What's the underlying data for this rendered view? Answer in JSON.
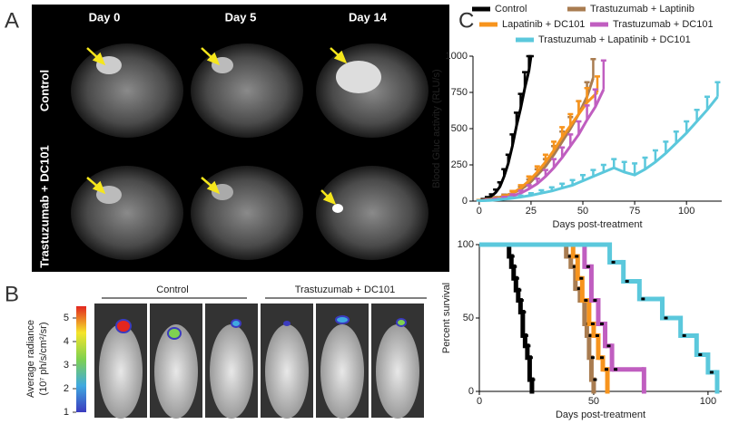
{
  "panels": {
    "a": {
      "label": "A",
      "columns": [
        "Day 0",
        "Day 5",
        "Day 14"
      ],
      "rows": [
        "Control",
        "Trastuzumab + DC101"
      ]
    },
    "b": {
      "label": "B",
      "groups": [
        "Control",
        "Trastuzumab + DC101"
      ],
      "colorbar": {
        "title": "Average radiance",
        "unit": "(10⁷ ph/s/cm²/sr)",
        "lim": [
          1,
          5.5
        ],
        "ticks": [
          1,
          2,
          3,
          4,
          5
        ]
      }
    },
    "c": {
      "label": "C"
    }
  },
  "chart_data": [
    {
      "type": "line",
      "ylabel": "Blood Gluc activity (RLU/s)",
      "xlabel": "Days post-treatment",
      "xlim": [
        -3,
        117
      ],
      "xticks": [
        0,
        25,
        50,
        75,
        100
      ],
      "ylim": [
        0,
        1000
      ],
      "yticks": [
        0,
        250,
        500,
        750,
        1000
      ],
      "series": [
        {
          "name": "Control",
          "color": "#000000",
          "x": [
            0,
            2,
            4,
            6,
            8,
            10,
            12,
            14,
            16,
            18,
            20,
            22,
            24,
            25
          ],
          "values": [
            5,
            10,
            20,
            35,
            60,
            100,
            170,
            260,
            380,
            520,
            640,
            780,
            900,
            1000
          ],
          "errors": [
            3,
            5,
            8,
            12,
            20,
            30,
            50,
            60,
            80,
            90,
            100,
            110,
            100,
            0
          ]
        },
        {
          "name": "Trastuzumab + Laptinib",
          "color": "#a97c50",
          "x": [
            0,
            4,
            8,
            12,
            16,
            20,
            24,
            28,
            32,
            36,
            40,
            44,
            48,
            52,
            55
          ],
          "values": [
            5,
            10,
            20,
            35,
            55,
            80,
            120,
            180,
            240,
            320,
            410,
            500,
            600,
            720,
            850
          ],
          "errors": [
            3,
            5,
            8,
            10,
            15,
            20,
            30,
            40,
            50,
            60,
            70,
            80,
            90,
            100,
            130
          ]
        },
        {
          "name": "Lapatinib + DC101",
          "color": "#f7941d",
          "x": [
            0,
            4,
            8,
            12,
            16,
            20,
            24,
            28,
            32,
            36,
            40,
            44,
            48,
            52,
            57
          ],
          "values": [
            5,
            8,
            15,
            30,
            55,
            90,
            140,
            200,
            270,
            350,
            440,
            520,
            600,
            680,
            750
          ],
          "errors": [
            3,
            4,
            7,
            10,
            15,
            20,
            30,
            40,
            50,
            60,
            70,
            80,
            90,
            100,
            110
          ]
        },
        {
          "name": "Trastuzumab + DC101",
          "color": "#c05ec0",
          "x": [
            0,
            4,
            8,
            12,
            16,
            20,
            24,
            28,
            32,
            36,
            40,
            44,
            48,
            52,
            56,
            60
          ],
          "values": [
            3,
            6,
            12,
            22,
            35,
            55,
            85,
            120,
            170,
            230,
            300,
            380,
            460,
            560,
            650,
            770
          ],
          "errors": [
            2,
            4,
            6,
            8,
            12,
            18,
            25,
            35,
            45,
            60,
            70,
            80,
            90,
            100,
            120,
            200
          ]
        },
        {
          "name": "Trastuzumab + Lapatinib + DC101",
          "color": "#5bc8dc",
          "x": [
            0,
            5,
            10,
            15,
            20,
            25,
            30,
            35,
            40,
            45,
            50,
            55,
            60,
            65,
            70,
            75,
            80,
            85,
            90,
            95,
            100,
            105,
            110,
            115
          ],
          "values": [
            2,
            5,
            10,
            18,
            28,
            40,
            55,
            70,
            90,
            110,
            140,
            170,
            200,
            230,
            200,
            180,
            220,
            270,
            330,
            400,
            470,
            550,
            630,
            720
          ],
          "errors": [
            2,
            3,
            5,
            8,
            10,
            15,
            20,
            25,
            30,
            35,
            40,
            45,
            50,
            60,
            70,
            80,
            80,
            80,
            80,
            80,
            80,
            80,
            90,
            100
          ]
        }
      ]
    },
    {
      "type": "survival",
      "ylabel": "Percent survival",
      "xlabel": "Days post-treatment",
      "xlim": [
        0,
        106
      ],
      "xticks": [
        0,
        50,
        100
      ],
      "ylim": [
        0,
        100
      ],
      "yticks": [
        0,
        50,
        100
      ],
      "series": [
        {
          "color": "#000000",
          "x": [
            0,
            13,
            14,
            15,
            16,
            17,
            18,
            19,
            20,
            21,
            22,
            23
          ],
          "values": [
            100,
            92,
            85,
            77,
            69,
            62,
            54,
            38,
            31,
            23,
            8,
            0
          ]
        },
        {
          "color": "#a97c50",
          "x": [
            0,
            38,
            40,
            42,
            44,
            46,
            47,
            48,
            49,
            50
          ],
          "values": [
            100,
            92,
            85,
            70,
            62,
            46,
            38,
            23,
            8,
            0
          ]
        },
        {
          "color": "#f7941d",
          "x": [
            0,
            41,
            43,
            45,
            48,
            50,
            52,
            54,
            56
          ],
          "values": [
            100,
            92,
            77,
            62,
            46,
            38,
            23,
            15,
            0
          ]
        },
        {
          "color": "#c05ec0",
          "x": [
            0,
            46,
            49,
            52,
            55,
            58,
            72
          ],
          "values": [
            100,
            85,
            62,
            46,
            31,
            15,
            0
          ]
        },
        {
          "color": "#5bc8dc",
          "x": [
            0,
            57,
            63,
            70,
            80,
            88,
            95,
            100,
            104
          ],
          "values": [
            100,
            88,
            75,
            63,
            50,
            38,
            25,
            13,
            0
          ]
        }
      ]
    }
  ]
}
